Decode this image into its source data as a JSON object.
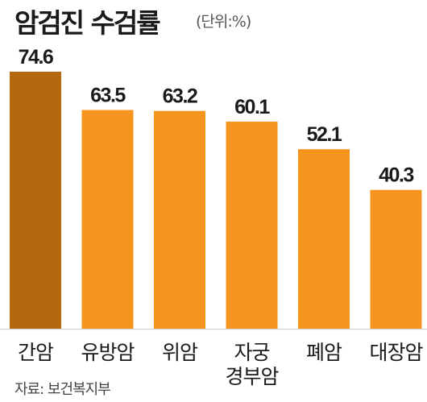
{
  "title": "암검진 수검률",
  "unit": "(단위:%)",
  "source": "자료: 보건복지부",
  "colors": {
    "highlight": "#b5690f",
    "bar": "#f5941f",
    "axis": "#cfcfcf"
  },
  "chart_data": {
    "type": "bar",
    "categories": [
      [
        "간암"
      ],
      [
        "유방암"
      ],
      [
        "위암"
      ],
      [
        "자궁",
        "경부암"
      ],
      [
        "폐암"
      ],
      [
        "대장암"
      ]
    ],
    "values": [
      74.6,
      63.5,
      63.2,
      60.1,
      52.1,
      40.3
    ],
    "value_labels": [
      "74.6",
      "63.5",
      "63.2",
      "60.1",
      "52.1",
      "40.3"
    ],
    "highlight_index": 0,
    "ylim": [
      0,
      74.6
    ],
    "grid": false,
    "legend": "none"
  }
}
